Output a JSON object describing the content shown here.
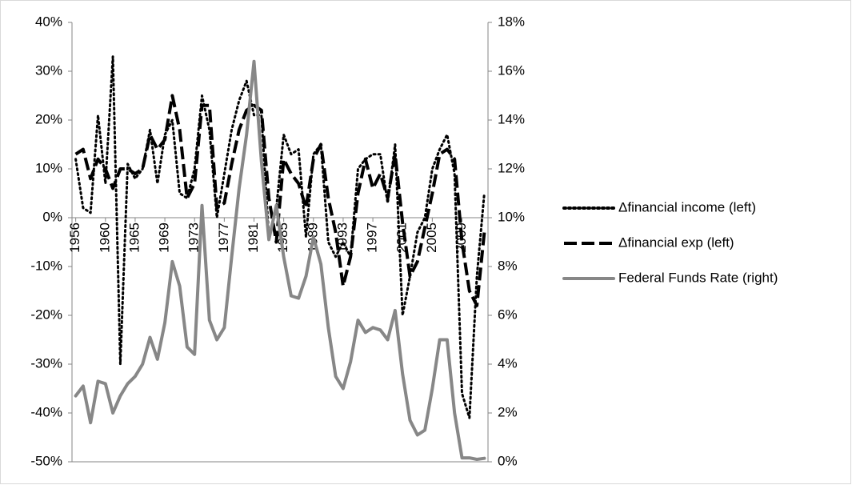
{
  "chart_data": {
    "type": "line",
    "categories": [
      "1956",
      null,
      null,
      null,
      "1960",
      null,
      null,
      null,
      "1965",
      null,
      null,
      null,
      "1969",
      null,
      null,
      null,
      "1973",
      null,
      null,
      null,
      "1977",
      null,
      null,
      null,
      "1981",
      null,
      null,
      null,
      "1985",
      null,
      null,
      null,
      "1989",
      null,
      null,
      null,
      "1993",
      null,
      null,
      null,
      "1997",
      null,
      null,
      null,
      "2001",
      null,
      null,
      null,
      "2005",
      null,
      null,
      null,
      "2009",
      null,
      null,
      null
    ],
    "series": [
      {
        "name": "Δfinancial income (left)",
        "color": "#000000",
        "dash": "dotted",
        "axis": "y",
        "values": [
          12,
          2,
          1,
          21,
          7,
          33,
          -30,
          11,
          8,
          10,
          18,
          7,
          17,
          20,
          5,
          4,
          10,
          25,
          18,
          0,
          9,
          18,
          24,
          28,
          21,
          21,
          -4,
          2,
          17,
          13,
          14,
          -4,
          13,
          15,
          -5,
          -8,
          -5,
          -8,
          10,
          12,
          13,
          13,
          3,
          15,
          -20,
          -12,
          -3,
          0,
          10,
          14,
          17,
          9,
          -36,
          -41,
          -12,
          5
        ]
      },
      {
        "name": "Δfinancial exp (left)",
        "color": "#000000",
        "dash": "dashed",
        "axis": "y",
        "values": [
          13,
          14,
          8,
          12,
          10,
          6,
          10,
          10,
          9,
          10,
          17,
          14,
          16,
          25,
          18,
          4,
          7,
          23,
          23,
          2,
          3,
          11,
          18,
          22,
          23,
          22,
          4,
          -5,
          12,
          9,
          7,
          2,
          12,
          15,
          4,
          -3,
          -14,
          -8,
          5,
          12,
          6,
          9,
          4,
          13,
          -1,
          -12,
          -9,
          -2,
          5,
          13,
          14,
          12,
          -5,
          -15,
          -18,
          -3
        ]
      },
      {
        "name": "Federal Funds Rate (right)",
        "color": "#878787",
        "dash": "solid",
        "axis": "y2",
        "values": [
          2.7,
          3.1,
          1.6,
          3.3,
          3.2,
          2.0,
          2.7,
          3.2,
          3.5,
          4.0,
          5.1,
          4.2,
          5.7,
          8.2,
          7.2,
          4.7,
          4.4,
          10.5,
          5.8,
          5.0,
          5.5,
          8.4,
          11.2,
          13.4,
          16.4,
          12.3,
          9.1,
          10.5,
          8.4,
          6.8,
          6.7,
          7.6,
          9.2,
          8.1,
          5.5,
          3.5,
          3.0,
          4.1,
          5.8,
          5.3,
          5.5,
          5.4,
          5.0,
          6.2,
          3.6,
          1.7,
          1.1,
          1.3,
          3.0,
          5.0,
          5.0,
          2.0,
          0.16,
          0.16,
          0.1,
          0.14
        ]
      }
    ],
    "ylim": [
      -50,
      40
    ],
    "yticks": [
      {
        "value": -50,
        "label": "-50%"
      },
      {
        "value": -40,
        "label": "-40%"
      },
      {
        "value": -30,
        "label": "-30%"
      },
      {
        "value": -20,
        "label": "-20%"
      },
      {
        "value": -10,
        "label": "-10%"
      },
      {
        "value": 0,
        "label": "0%"
      },
      {
        "value": 10,
        "label": "10%"
      },
      {
        "value": 20,
        "label": "20%"
      },
      {
        "value": 30,
        "label": "30%"
      },
      {
        "value": 40,
        "label": "40%"
      }
    ],
    "y2lim": [
      0,
      18
    ],
    "y2ticks": [
      {
        "value": 0,
        "label": "0%"
      },
      {
        "value": 2,
        "label": "2%"
      },
      {
        "value": 4,
        "label": "4%"
      },
      {
        "value": 6,
        "label": "6%"
      },
      {
        "value": 8,
        "label": "8%"
      },
      {
        "value": 10,
        "label": "10%"
      },
      {
        "value": 12,
        "label": "12%"
      },
      {
        "value": 14,
        "label": "14%"
      },
      {
        "value": 16,
        "label": "16%"
      },
      {
        "value": 18,
        "label": "18%"
      }
    ],
    "legend": "right"
  }
}
